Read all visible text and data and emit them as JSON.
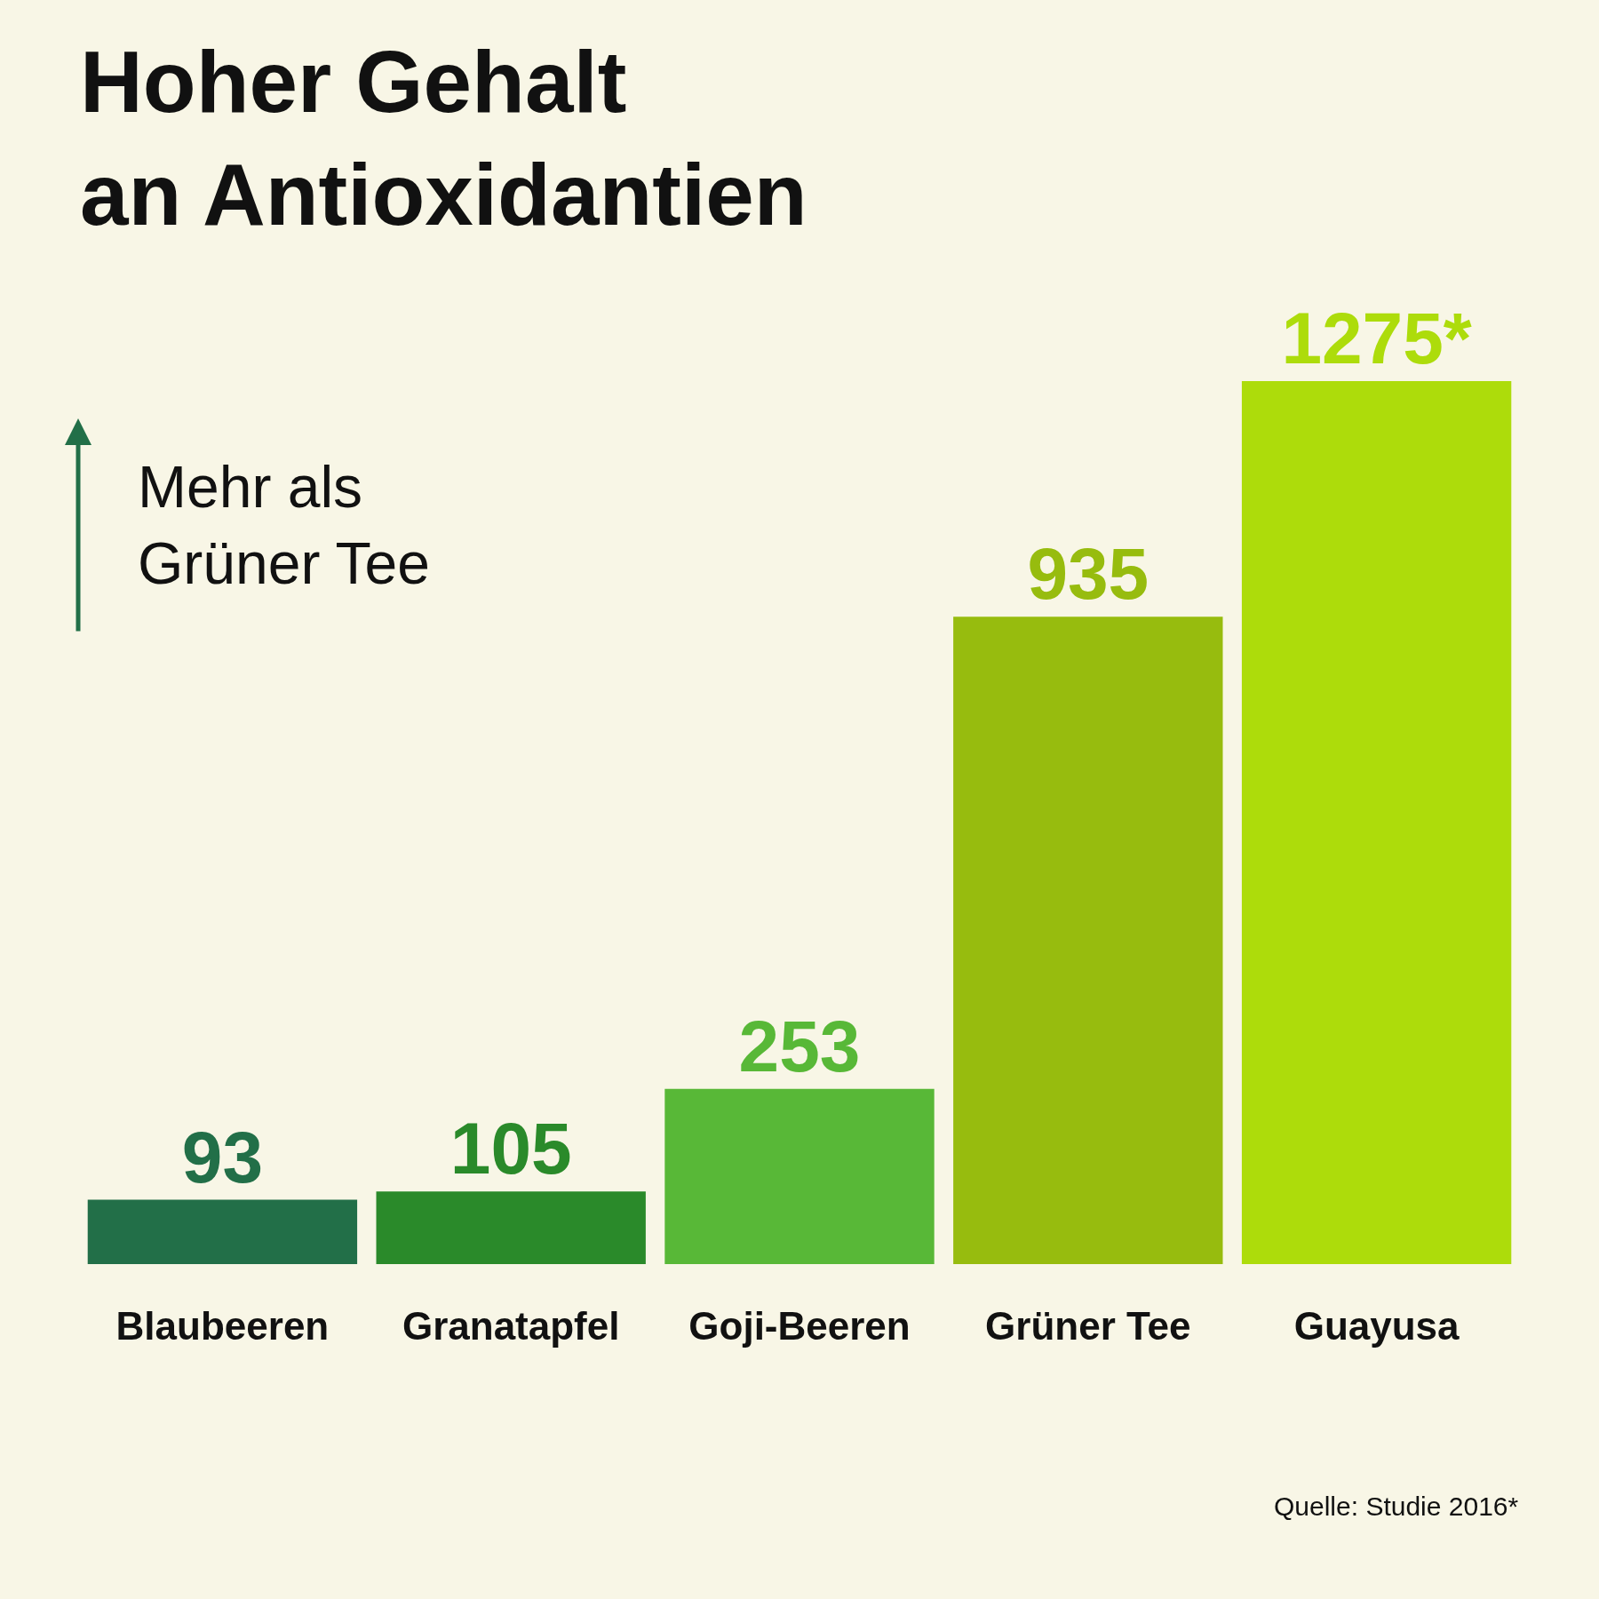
{
  "chart_data": {
    "type": "bar",
    "title": "Hoher Gehalt\nan Antioxidantien",
    "categories": [
      "Blaubeeren",
      "Granatapfel",
      "Goji-Beeren",
      "Grüner Tee",
      "Guayusa"
    ],
    "values": [
      93,
      105,
      253,
      935,
      1275
    ],
    "colors": [
      "#226f48",
      "#2a8a2a",
      "#58b837",
      "#97bc0e",
      "#addc0b"
    ],
    "value_labels": [
      "93",
      "105",
      "253",
      "935",
      "1275*"
    ],
    "annotations": [
      "Mehr als\nGrüner Tee",
      "Quelle: Studie 2016*"
    ],
    "grid": false,
    "legend": false
  }
}
